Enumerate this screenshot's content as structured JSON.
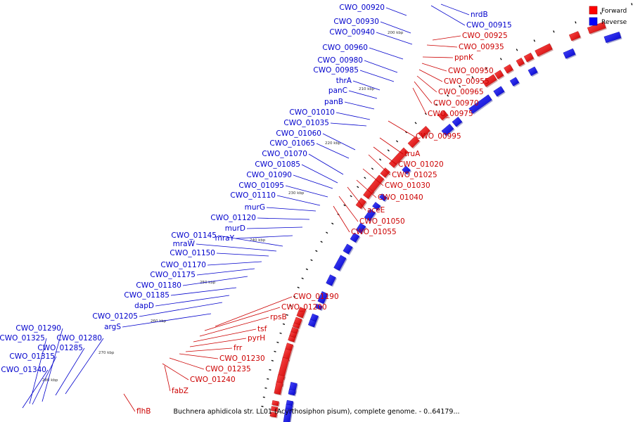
{
  "legend": {
    "forward": {
      "label": "Forward",
      "color": "#ff0000"
    },
    "reverse": {
      "label": "Reverse",
      "color": "#0000ff"
    }
  },
  "caption": "Buchnera aphidicola str. LL01 (Acyrthosiphon pisum), complete genome. - 0..64179...",
  "ticks": [
    "200 kbp",
    "210 kbp",
    "220 kbp",
    "230 kbp",
    "240 kbp",
    "250 kbp",
    "260 kbp",
    "270 kbp",
    "280 kbp"
  ],
  "reverse_labels": [
    "CWO_00920",
    "CWO_00930",
    "CWO_00940",
    "CWO_00960",
    "CWO_00980",
    "CWO_00985",
    "thrA",
    "panC",
    "panB",
    "CWO_01010",
    "CWO_01035",
    "CWO_01060",
    "CWO_01065",
    "CWO_01070",
    "CWO_01085",
    "CWO_01090",
    "CWO_01095",
    "CWO_01110",
    "murG",
    "CWO_01120",
    "murD",
    "mraY",
    "CWO_01145",
    "mraW",
    "CWO_01150",
    "CWO_01170",
    "CWO_01175",
    "CWO_01180",
    "CWO_01185",
    "dapD",
    "CWO_01205",
    "argS",
    "CWO_01290",
    "CWO_01325",
    "CWO_01280",
    "CWO_01285",
    "CWO_01315",
    "CWO_01340"
  ],
  "top_right_labels": [
    "nrdB",
    "CWO_00915"
  ],
  "forward_labels": [
    "CWO_00925",
    "CWO_00935",
    "ppnK",
    "CWO_00950",
    "CWO_00955",
    "CWO_00965",
    "CWO_00970",
    "CWO_00975",
    "CWO_00995",
    "truA",
    "CWO_01020",
    "CWO_01025",
    "CWO_01030",
    "CWO_01040",
    "aceE",
    "CWO_01050",
    "CWO_01055",
    "CWO_01190",
    "CWO_01200",
    "rpsB",
    "tsf",
    "pyrH",
    "frr",
    "CWO_01230",
    "CWO_01235",
    "CWO_01240",
    "fabZ",
    "flhB"
  ]
}
